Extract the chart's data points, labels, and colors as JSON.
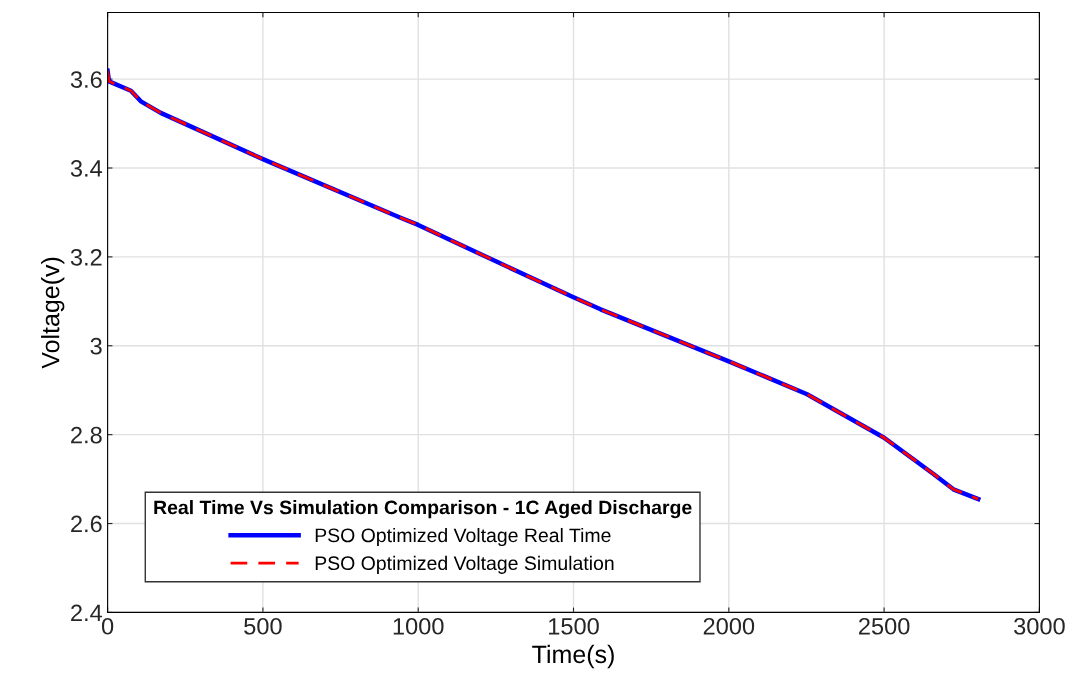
{
  "chart_data": {
    "type": "line",
    "xlabel": "Time(s)",
    "ylabel": "Voltage(v)",
    "legend_title": "Real Time Vs Simulation Comparison - 1C Aged Discharge",
    "x": [
      0,
      4.5,
      75,
      107,
      171,
      500,
      943,
      1000,
      1250,
      1500,
      1587,
      2000,
      2252,
      2500,
      2660,
      2723,
      2803
    ],
    "series": [
      {
        "name": "PSO Optimized Voltage Real Time",
        "color": "#0000ff",
        "line_style": "solid",
        "values": [
          3.619,
          3.595,
          3.574,
          3.55,
          3.524,
          3.42,
          3.288,
          3.272,
          3.19,
          3.109,
          3.082,
          2.965,
          2.891,
          2.793,
          2.711,
          2.677,
          2.655
        ]
      },
      {
        "name": "PSO Optimized Voltage Simulation",
        "color": "#ff0000",
        "line_style": "dashed",
        "values": [
          3.619,
          3.595,
          3.574,
          3.55,
          3.524,
          3.42,
          3.288,
          3.272,
          3.19,
          3.109,
          3.082,
          2.965,
          2.891,
          2.793,
          2.711,
          2.677,
          2.655
        ]
      }
    ],
    "xlim": [
      0,
      3000
    ],
    "xticks": [
      0,
      500,
      1000,
      1500,
      2000,
      2500,
      3000
    ],
    "ylim": [
      2.4,
      3.75
    ],
    "yticks": [
      2.4,
      2.6,
      2.8,
      3,
      3.2,
      3.4,
      3.6
    ],
    "grid": true,
    "legend": "bottom left"
  }
}
